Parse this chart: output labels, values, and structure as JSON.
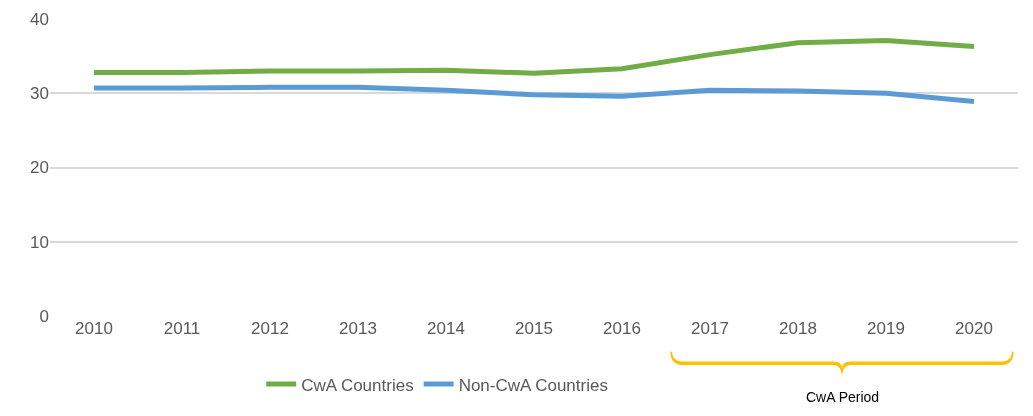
{
  "chart_data": {
    "type": "line",
    "categories": [
      "2010",
      "2011",
      "2012",
      "2013",
      "2014",
      "2015",
      "2016",
      "2017",
      "2018",
      "2019",
      "2020"
    ],
    "series": [
      {
        "name": "CwA Countries",
        "color": "#70ad47",
        "values": [
          32.8,
          32.8,
          33.0,
          33.0,
          33.1,
          32.7,
          33.3,
          35.2,
          36.8,
          37.1,
          36.3
        ]
      },
      {
        "name": "Non-CwA Countries",
        "color": "#5b9bd5",
        "values": [
          30.7,
          30.7,
          30.8,
          30.8,
          30.4,
          29.8,
          29.6,
          30.4,
          30.3,
          30.0,
          28.9
        ]
      }
    ],
    "ylim": [
      0,
      40
    ],
    "yticks": [
      0,
      10,
      20,
      30,
      40
    ],
    "grid": "y",
    "legend": "bottom",
    "marker": "none",
    "line_style": "solid",
    "annotations": [
      "CwA Period"
    ]
  }
}
